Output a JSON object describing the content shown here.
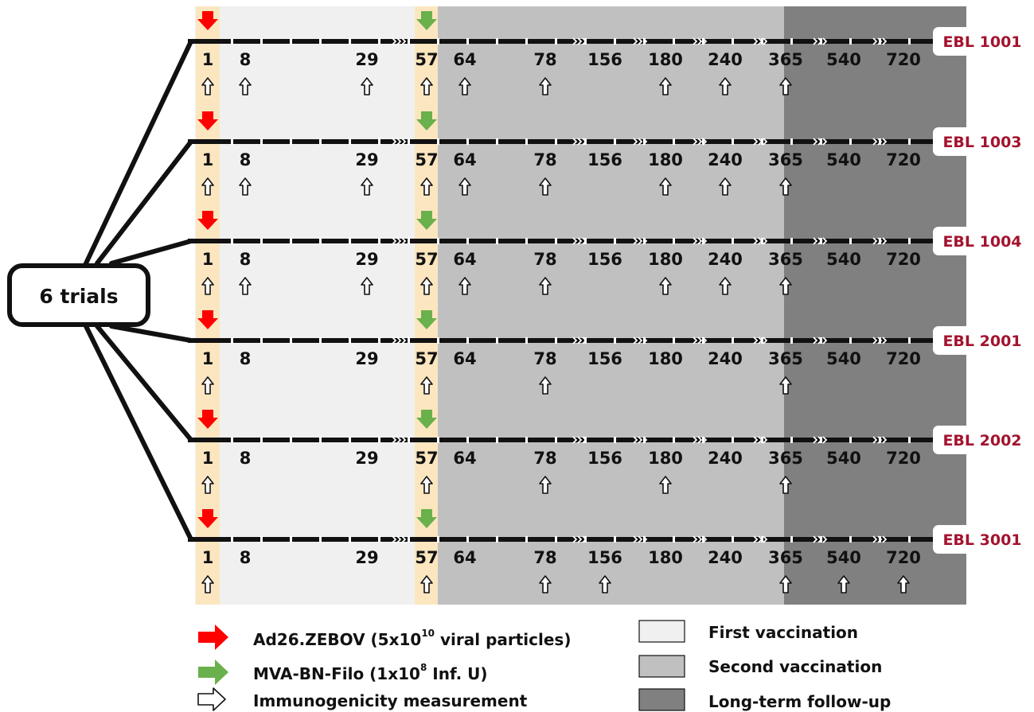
{
  "root_label": "6 trials",
  "days": [
    "1",
    "8",
    "29",
    "57",
    "64",
    "78",
    "156",
    "180",
    "240",
    "365",
    "540",
    "720"
  ],
  "trials": [
    {
      "name": "EBL 1001",
      "days_shown": [
        "1",
        "8",
        "29",
        "57",
        "64",
        "78",
        "156",
        "180",
        "240",
        "365",
        "540",
        "720"
      ],
      "measured": [
        "1",
        "8",
        "29",
        "57",
        "64",
        "78",
        "180",
        "240",
        "365"
      ]
    },
    {
      "name": "EBL 1003",
      "days_shown": [
        "1",
        "8",
        "29",
        "57",
        "64",
        "78",
        "156",
        "180",
        "240",
        "365",
        "540",
        "720"
      ],
      "measured": [
        "1",
        "8",
        "29",
        "57",
        "64",
        "78",
        "180",
        "240",
        "365"
      ]
    },
    {
      "name": "EBL 1004",
      "days_shown": [
        "1",
        "8",
        "29",
        "57",
        "64",
        "78",
        "156",
        "180",
        "240",
        "365",
        "540",
        "720"
      ],
      "measured": [
        "1",
        "8",
        "29",
        "57",
        "64",
        "78",
        "180",
        "240",
        "365"
      ]
    },
    {
      "name": "EBL 2001",
      "days_shown": [
        "1",
        "8",
        "29",
        "57",
        "64",
        "78",
        "156",
        "180",
        "240",
        "365",
        "540",
        "720"
      ],
      "measured": [
        "1",
        "57",
        "78",
        "365"
      ]
    },
    {
      "name": "EBL 2002",
      "days_shown": [
        "1",
        "8",
        "29",
        "57",
        "64",
        "78",
        "156",
        "180",
        "240",
        "365",
        "540",
        "720"
      ],
      "measured": [
        "1",
        "57",
        "78",
        "180",
        "365"
      ]
    },
    {
      "name": "EBL 3001",
      "days_shown": [
        "1",
        "8",
        "29",
        "57",
        "64",
        "78",
        "156",
        "180",
        "240",
        "365",
        "540",
        "720"
      ],
      "measured": [
        "1",
        "57",
        "78",
        "156",
        "365",
        "540",
        "720"
      ]
    }
  ],
  "colors": {
    "first_vaccination": "#f0f0f0",
    "second_vaccination": "#c0c0c0",
    "long_term_follow_up": "#808080",
    "highlight": "#fbe6bf",
    "ad26_arrow": "#ff0000",
    "mva_arrow": "#6ab04c",
    "trial_label": "#a3132e"
  },
  "legend": {
    "arrows": [
      {
        "icon": "red-arrow-icon",
        "text_main": "Ad26.ZEBOV (5x10",
        "text_sup": "10",
        "text_tail": " viral particles)"
      },
      {
        "icon": "green-arrow-icon",
        "text_main": "MVA-BN-Filo (1x10",
        "text_sup": "8",
        "text_tail": " Inf. U)"
      },
      {
        "icon": "outline-arrow-icon",
        "text_main": "Immunogenicity measurement",
        "text_sup": "",
        "text_tail": ""
      }
    ],
    "phases": [
      {
        "label": "First vaccination",
        "color": "#f0f0f0"
      },
      {
        "label": "Second vaccination",
        "color": "#c0c0c0"
      },
      {
        "label": "Long-term follow-up",
        "color": "#808080"
      }
    ]
  }
}
